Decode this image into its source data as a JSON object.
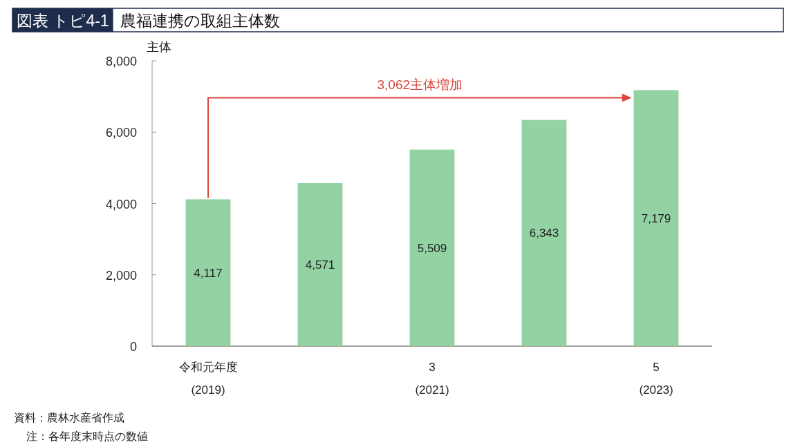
{
  "chart_data": {
    "type": "bar",
    "title": "図表 トピ4-1",
    "subtitle": "農福連携の取組主体数",
    "ylabel": "主体",
    "categories": [
      "令和元年度\n(2019)",
      null,
      "3\n(2021)",
      null,
      "5\n(2023)"
    ],
    "values": [
      4117,
      4571,
      5509,
      6343,
      7179
    ],
    "value_labels": [
      "4,117",
      "4,571",
      "5,509",
      "6,343",
      "7,179"
    ],
    "color": "#93d3a3",
    "ylim": [
      0,
      8000
    ],
    "yticks": [
      {
        "value": 0,
        "label": "0"
      },
      {
        "value": 2000,
        "label": "2,000"
      },
      {
        "value": 4000,
        "label": "4,000"
      },
      {
        "value": 6000,
        "label": "6,000"
      },
      {
        "value": 8000,
        "label": "8,000"
      }
    ],
    "annotations": [
      "3,062主体増加",
      "資料：農林水産省作成",
      "注：各年度末時点の数値"
    ]
  }
}
